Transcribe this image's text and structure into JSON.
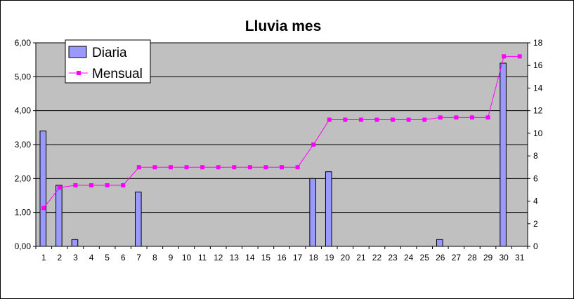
{
  "chart_data": {
    "type": "bar",
    "title": "Lluvia mes",
    "categories": [
      "1",
      "2",
      "3",
      "4",
      "5",
      "6",
      "7",
      "8",
      "9",
      "10",
      "11",
      "12",
      "13",
      "14",
      "15",
      "16",
      "17",
      "18",
      "19",
      "20",
      "21",
      "22",
      "23",
      "24",
      "25",
      "26",
      "27",
      "28",
      "29",
      "30",
      "31"
    ],
    "y_left": {
      "min": 0,
      "max": 6,
      "step": 1,
      "tick_labels": [
        "0,00",
        "1,00",
        "2,00",
        "3,00",
        "4,00",
        "5,00",
        "6,00"
      ]
    },
    "y_right": {
      "min": 0,
      "max": 18,
      "step": 2,
      "tick_labels": [
        "0",
        "2",
        "4",
        "6",
        "8",
        "10",
        "12",
        "14",
        "16",
        "18"
      ]
    },
    "grid": true,
    "legend_placement": "top-left",
    "series": [
      {
        "name": "Diaria",
        "type": "bar",
        "axis": "left",
        "color": "#9999ff",
        "values": [
          3.4,
          1.8,
          0.2,
          0,
          0,
          0,
          1.6,
          0,
          0,
          0,
          0,
          0,
          0,
          0,
          0,
          0,
          0,
          2.0,
          2.2,
          0,
          0,
          0,
          0,
          0,
          0,
          0.2,
          0,
          0,
          0,
          5.4,
          0
        ]
      },
      {
        "name": "Mensual",
        "type": "line",
        "axis": "right",
        "color": "#ff00ff",
        "values": [
          3.4,
          5.2,
          5.4,
          5.4,
          5.4,
          5.4,
          7.0,
          7.0,
          7.0,
          7.0,
          7.0,
          7.0,
          7.0,
          7.0,
          7.0,
          7.0,
          7.0,
          9.0,
          11.2,
          11.2,
          11.2,
          11.2,
          11.2,
          11.2,
          11.2,
          11.4,
          11.4,
          11.4,
          11.4,
          16.8,
          16.8
        ]
      }
    ],
    "colors": {
      "plot_background": "#c0c0c0",
      "gridline": "#000000",
      "axis": "#808080"
    }
  }
}
